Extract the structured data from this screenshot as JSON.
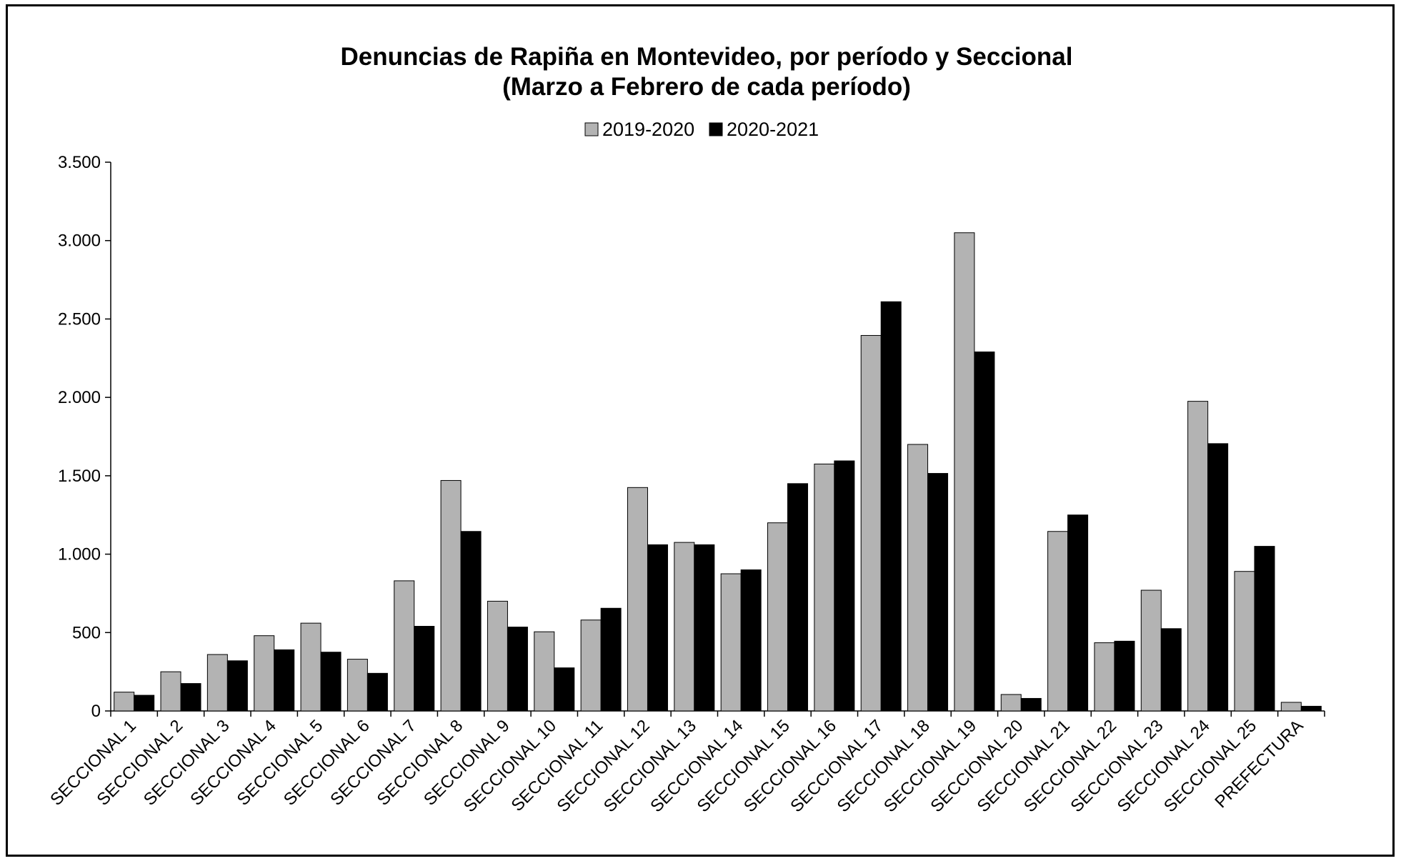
{
  "chart_data": {
    "type": "bar",
    "title": "Denuncias de Rapiña en Montevideo, por período y Seccional",
    "subtitle": "(Marzo a Febrero de cada período)",
    "xlabel": "",
    "ylabel": "",
    "ylim": [
      0,
      3500
    ],
    "yticks": [
      0,
      500,
      1000,
      1500,
      2000,
      2500,
      3000,
      3500
    ],
    "ytick_labels": [
      "0",
      "500",
      "1.000",
      "1.500",
      "2.000",
      "2.500",
      "3.000",
      "3.500"
    ],
    "grid": false,
    "legend_position": "top-center",
    "categories": [
      "SECCIONAL 1",
      "SECCIONAL 2",
      "SECCIONAL 3",
      "SECCIONAL 4",
      "SECCIONAL 5",
      "SECCIONAL 6",
      "SECCIONAL 7",
      "SECCIONAL 8",
      "SECCIONAL 9",
      "SECCIONAL 10",
      "SECCIONAL 11",
      "SECCIONAL 12",
      "SECCIONAL 13",
      "SECCIONAL 14",
      "SECCIONAL 15",
      "SECCIONAL 16",
      "SECCIONAL 17",
      "SECCIONAL 18",
      "SECCIONAL 19",
      "SECCIONAL 20",
      "SECCIONAL 21",
      "SECCIONAL 22",
      "SECCIONAL 23",
      "SECCIONAL 24",
      "SECCIONAL 25",
      "PREFECTURA"
    ],
    "series": [
      {
        "name": "2019-2020",
        "color": "#b3b3b3",
        "values": [
          120,
          250,
          360,
          480,
          560,
          330,
          830,
          1470,
          700,
          505,
          580,
          1425,
          1075,
          875,
          1200,
          1575,
          2395,
          1700,
          3050,
          105,
          1145,
          435,
          770,
          1975,
          890,
          55
        ]
      },
      {
        "name": "2020-2021",
        "color": "#000000",
        "values": [
          100,
          175,
          320,
          390,
          375,
          240,
          540,
          1145,
          535,
          275,
          655,
          1060,
          1060,
          900,
          1450,
          1595,
          2610,
          1515,
          2290,
          80,
          1250,
          445,
          525,
          1705,
          1050,
          30
        ]
      }
    ]
  }
}
